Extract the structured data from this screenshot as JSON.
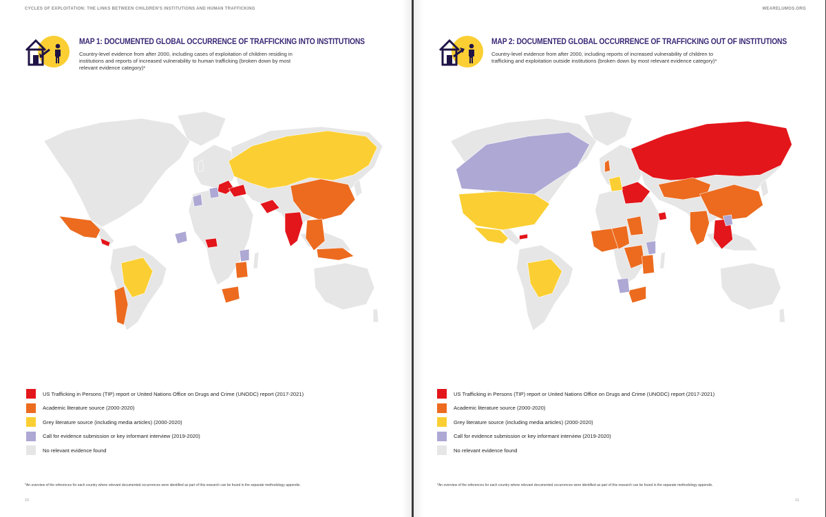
{
  "header": {
    "left_running_title": "CYCLES OF EXPLOITATION: THE LINKS BETWEEN CHILDREN'S INSTITUTIONS AND HUMAN TRAFFICKING",
    "right_running_title": "WEARELUMOS.ORG"
  },
  "map1": {
    "title": "MAP 1: DOCUMENTED GLOBAL OCCURRENCE OF TRAFFICKING INTO INSTITUTIONS",
    "description": "Country-level evidence from after 2000, including cases of exploitation of children residing in institutions and reports of increased vulnerability to human trafficking (broken down by most relevant evidence category)*",
    "page_number": "10",
    "footnote": "*An overview of the references for each country where relevant documented occurrences were identified as part of this research can be found in the separate methodology appendix."
  },
  "map2": {
    "title": "MAP 2: DOCUMENTED GLOBAL OCCURRENCE OF TRAFFICKING OUT OF INSTITUTIONS",
    "description": "Country-level evidence from after 2000, including reports of increased vulnerability of children to trafficking and exploitation outside institutions (broken down by most relevant evidence category)*",
    "page_number": "11",
    "footnote": "*An overview of the references for each country where relevant documented occurrences were identified as part of this research can be found in the separate methodology appendix."
  },
  "legend": [
    {
      "label": "US Trafficking in Persons (TIP) report or United Nations Office on Drugs and Crime (UNODC) report (2017-2021)",
      "color": "#e3161b"
    },
    {
      "label": "Academic literature source (2000-2020)",
      "color": "#ec6b1f"
    },
    {
      "label": "Grey literature source (including media articles) (2000-2020)",
      "color": "#fbcf33"
    },
    {
      "label": "Call for evidence submission or key informant interview (2019-2020)",
      "color": "#ada8d4"
    },
    {
      "label": "No relevant evidence found",
      "color": "#e6e6e6"
    }
  ],
  "icon": {
    "name": "house-child-arrow-icon",
    "circle_color": "#fbcf33",
    "line_color": "#1f1346"
  },
  "map_colors": {
    "red": "#e3161b",
    "orange": "#ec6b1f",
    "yellow": "#fbcf33",
    "purple": "#ada8d4",
    "grey": "#e6e6e6"
  }
}
